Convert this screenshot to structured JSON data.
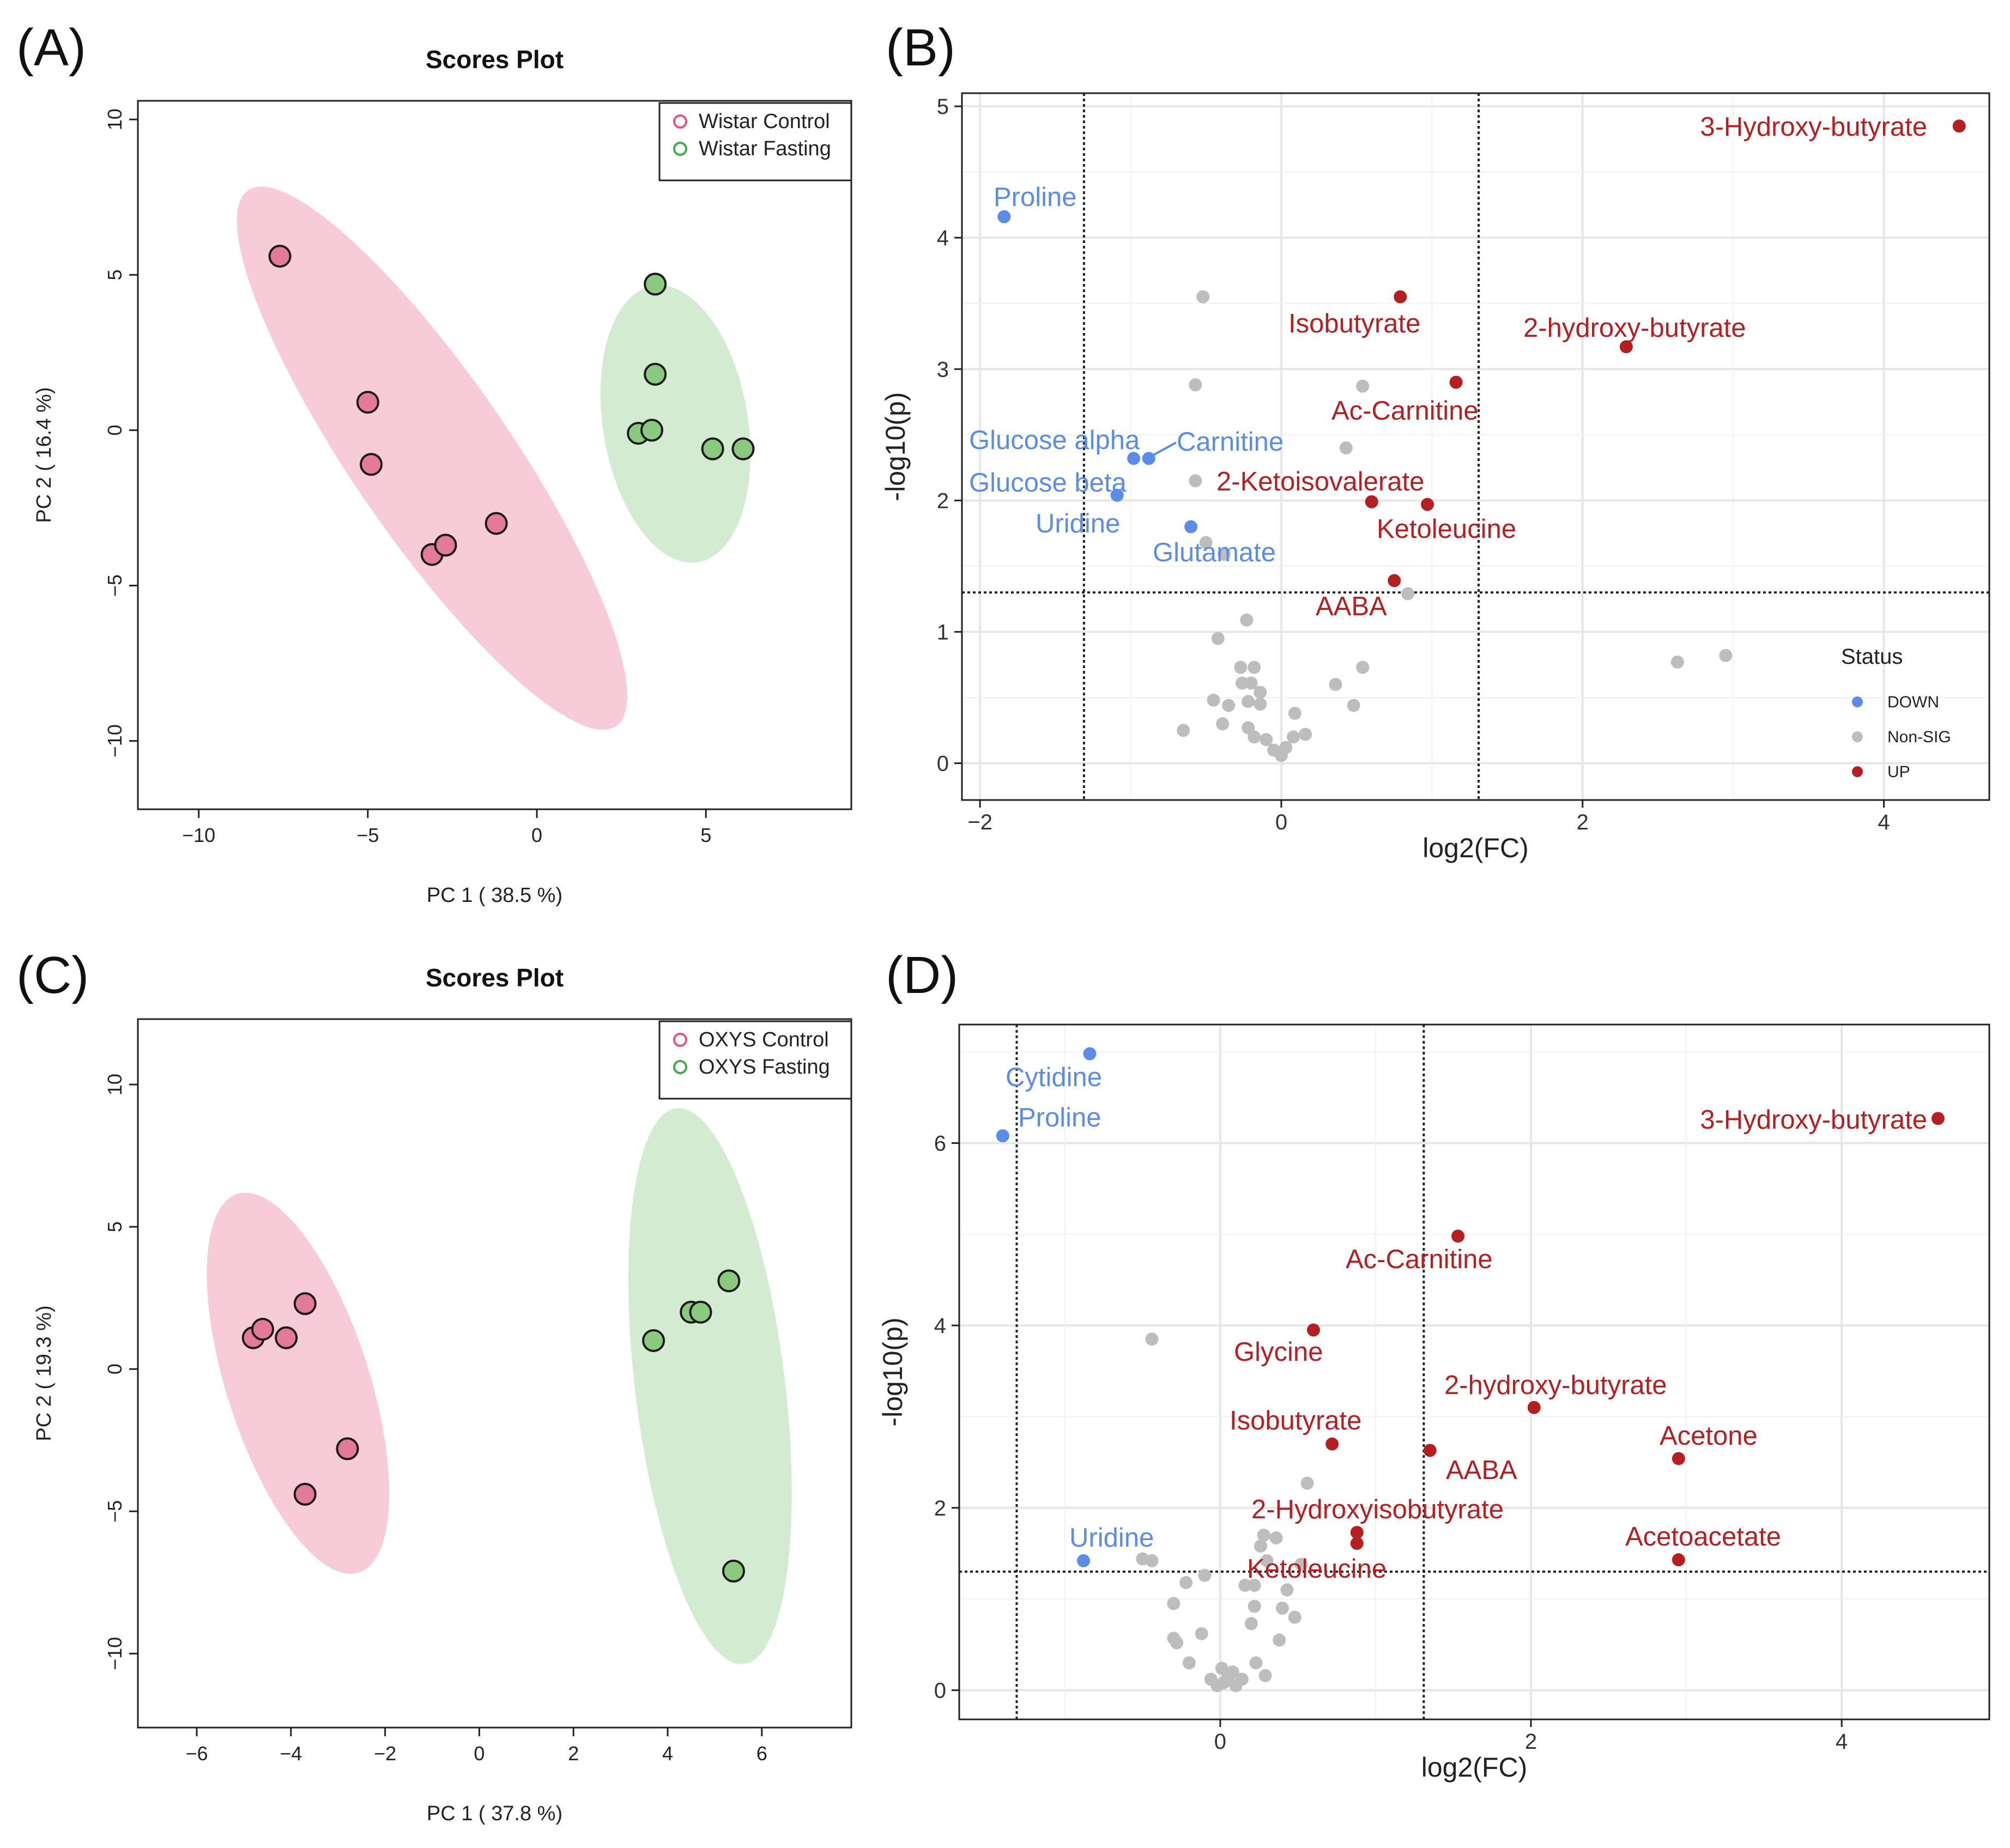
{
  "chart_data": [
    {
      "panel": "(A)",
      "type": "scatter",
      "title": "Scores Plot",
      "xlabel": "PC 1 ( 38.5 %)",
      "ylabel": "PC 2 ( 16.4 %)",
      "xlim": [
        -11.8,
        9.3
      ],
      "ylim": [
        -12.2,
        10.6
      ],
      "xticks": [
        -10,
        -5,
        0,
        5
      ],
      "yticks": [
        10,
        5,
        0,
        -5,
        -10
      ],
      "legend": {
        "position": "top-right"
      },
      "series": [
        {
          "name": "Wistar Control",
          "color": "#e0567e",
          "fill": "#e27a98",
          "ellipse": {
            "cx": -3.1,
            "cy": -0.9,
            "rx": 10.2,
            "ry": 2.4,
            "angle": -58
          },
          "points": [
            [
              -7.6,
              5.6
            ],
            [
              -5.0,
              0.9
            ],
            [
              -4.9,
              -1.1
            ],
            [
              -3.1,
              -4.0
            ],
            [
              -2.7,
              -3.7
            ],
            [
              -1.2,
              -3.0
            ]
          ]
        },
        {
          "name": "Wistar Fasting",
          "color": "#3fae49",
          "fill": "#8bc981",
          "ellipse": {
            "cx": 4.1,
            "cy": 0.2,
            "rx": 4.5,
            "ry": 2.15,
            "angle": -82
          },
          "points": [
            [
              3.5,
              4.7
            ],
            [
              3.5,
              1.8
            ],
            [
              3.0,
              -0.1
            ],
            [
              3.4,
              0.0
            ],
            [
              5.2,
              -0.6
            ],
            [
              6.1,
              -0.6
            ]
          ]
        }
      ]
    },
    {
      "panel": "(B)",
      "type": "scatter",
      "xlabel": "log2(FC)",
      "ylabel": "-log10(p)",
      "xlim": [
        -2.12,
        4.7
      ],
      "ylim": [
        -0.28,
        5.1
      ],
      "xticks": [
        -2,
        0,
        2,
        4
      ],
      "yticks": [
        0,
        1,
        2,
        3,
        4,
        5
      ],
      "vlines": [
        -1.31,
        1.31
      ],
      "hline": 1.3,
      "legend": {
        "title": "Status",
        "position": "bottom-right",
        "entries": [
          {
            "label": "DOWN",
            "color": "#5b8ce8"
          },
          {
            "label": "Non-SIG",
            "color": "#bdbdbd"
          },
          {
            "label": "UP",
            "color": "#b51f22"
          }
        ]
      },
      "points": [
        {
          "x": 4.5,
          "y": 4.85,
          "status": "UP",
          "label": "3-Hydroxy-butyrate"
        },
        {
          "x": 0.79,
          "y": 3.55,
          "status": "UP",
          "label": "Isobutyrate"
        },
        {
          "x": 2.29,
          "y": 3.17,
          "status": "UP",
          "label": "2-hydroxy-butyrate"
        },
        {
          "x": 1.16,
          "y": 2.9,
          "status": "UP",
          "label": "Ac-Carnitine"
        },
        {
          "x": 0.6,
          "y": 1.99,
          "status": "UP",
          "label": "2-Ketoisovalerate"
        },
        {
          "x": 0.97,
          "y": 1.97,
          "status": "UP",
          "label": "Ketoleucine"
        },
        {
          "x": 0.75,
          "y": 1.39,
          "status": "UP",
          "label": "AABA"
        },
        {
          "x": -1.84,
          "y": 4.16,
          "status": "DOWN",
          "label": "Proline"
        },
        {
          "x": -0.98,
          "y": 2.32,
          "status": "DOWN",
          "label": "Glucose alpha"
        },
        {
          "x": -0.88,
          "y": 2.32,
          "status": "DOWN",
          "label": "Carnitine"
        },
        {
          "x": -1.09,
          "y": 2.04,
          "status": "DOWN",
          "label": "Glucose beta"
        },
        {
          "x": -1.09,
          "y": 2.04,
          "status": "DOWN",
          "label": "Uridine"
        },
        {
          "x": -0.6,
          "y": 1.8,
          "status": "DOWN",
          "label": "Glutamate"
        },
        {
          "x": -0.52,
          "y": 3.55,
          "status": "Non-SIG"
        },
        {
          "x": -0.57,
          "y": 2.88,
          "status": "Non-SIG"
        },
        {
          "x": 0.54,
          "y": 2.87,
          "status": "Non-SIG"
        },
        {
          "x": 0.43,
          "y": 2.4,
          "status": "Non-SIG"
        },
        {
          "x": -0.57,
          "y": 2.15,
          "status": "Non-SIG"
        },
        {
          "x": -0.5,
          "y": 1.68,
          "status": "Non-SIG"
        },
        {
          "x": -0.38,
          "y": 1.59,
          "status": "Non-SIG"
        },
        {
          "x": 0.84,
          "y": 1.29,
          "status": "Non-SIG"
        },
        {
          "x": -0.23,
          "y": 1.09,
          "status": "Non-SIG"
        },
        {
          "x": -0.42,
          "y": 0.95,
          "status": "Non-SIG"
        },
        {
          "x": -0.27,
          "y": 0.73,
          "status": "Non-SIG"
        },
        {
          "x": -0.18,
          "y": 0.73,
          "status": "Non-SIG"
        },
        {
          "x": -0.26,
          "y": 0.61,
          "status": "Non-SIG"
        },
        {
          "x": -0.2,
          "y": 0.61,
          "status": "Non-SIG"
        },
        {
          "x": -0.14,
          "y": 0.54,
          "status": "Non-SIG"
        },
        {
          "x": -0.45,
          "y": 0.48,
          "status": "Non-SIG"
        },
        {
          "x": -0.35,
          "y": 0.44,
          "status": "Non-SIG"
        },
        {
          "x": -0.22,
          "y": 0.47,
          "status": "Non-SIG"
        },
        {
          "x": -0.14,
          "y": 0.45,
          "status": "Non-SIG"
        },
        {
          "x": 0.36,
          "y": 0.6,
          "status": "Non-SIG"
        },
        {
          "x": 0.54,
          "y": 0.73,
          "status": "Non-SIG"
        },
        {
          "x": 0.48,
          "y": 0.44,
          "status": "Non-SIG"
        },
        {
          "x": -0.65,
          "y": 0.25,
          "status": "Non-SIG"
        },
        {
          "x": -0.39,
          "y": 0.3,
          "status": "Non-SIG"
        },
        {
          "x": -0.22,
          "y": 0.27,
          "status": "Non-SIG"
        },
        {
          "x": -0.18,
          "y": 0.2,
          "status": "Non-SIG"
        },
        {
          "x": -0.1,
          "y": 0.18,
          "status": "Non-SIG"
        },
        {
          "x": -0.05,
          "y": 0.1,
          "status": "Non-SIG"
        },
        {
          "x": 0.0,
          "y": 0.06,
          "status": "Non-SIG"
        },
        {
          "x": 0.03,
          "y": 0.12,
          "status": "Non-SIG"
        },
        {
          "x": 0.08,
          "y": 0.2,
          "status": "Non-SIG"
        },
        {
          "x": 0.16,
          "y": 0.22,
          "status": "Non-SIG"
        },
        {
          "x": 0.09,
          "y": 0.38,
          "status": "Non-SIG"
        },
        {
          "x": 2.63,
          "y": 0.77,
          "status": "Non-SIG"
        },
        {
          "x": 2.95,
          "y": 0.82,
          "status": "Non-SIG"
        }
      ]
    },
    {
      "panel": "(C)",
      "type": "scatter",
      "title": "Scores Plot",
      "xlabel": "PC 1 ( 37.8 %)",
      "ylabel": "PC 2 ( 19.3 %)",
      "xlim": [
        -7.25,
        7.9
      ],
      "ylim": [
        -12.6,
        12.3
      ],
      "xticks": [
        -6,
        -4,
        -2,
        0,
        2,
        4,
        6
      ],
      "yticks": [
        10,
        5,
        0,
        -5,
        -10
      ],
      "legend": {
        "position": "top-right"
      },
      "series": [
        {
          "name": "OXYS Control",
          "color": "#e0567e",
          "fill": "#e27a98",
          "ellipse": {
            "cx": -3.85,
            "cy": -0.5,
            "rx": 6.8,
            "ry": 1.56,
            "angle": -80
          },
          "points": [
            [
              -4.8,
              1.1
            ],
            [
              -4.6,
              1.4
            ],
            [
              -4.1,
              1.1
            ],
            [
              -3.7,
              2.3
            ],
            [
              -2.8,
              -2.8
            ],
            [
              -3.7,
              -4.4
            ]
          ]
        },
        {
          "name": "OXYS Fasting",
          "color": "#3fae49",
          "fill": "#8bc981",
          "ellipse": {
            "cx": 4.9,
            "cy": -0.6,
            "rx": 9.8,
            "ry": 1.6,
            "angle": -86
          },
          "points": [
            [
              3.7,
              1.0
            ],
            [
              4.5,
              2.0
            ],
            [
              4.7,
              2.0
            ],
            [
              5.3,
              3.1
            ],
            [
              5.4,
              -7.1
            ]
          ]
        }
      ]
    },
    {
      "panel": "(D)",
      "type": "scatter",
      "xlabel": "log2(FC)",
      "ylabel": "-log10(p)",
      "xlim": [
        -1.68,
        4.95
      ],
      "ylim": [
        -0.32,
        7.3
      ],
      "xticks": [
        0,
        2,
        4
      ],
      "yticks": [
        0,
        2,
        4,
        6
      ],
      "vlines": [
        -1.31,
        1.31
      ],
      "hline": 1.3,
      "points": [
        {
          "x": 4.62,
          "y": 6.27,
          "status": "UP",
          "label": "3-Hydroxy-butyrate"
        },
        {
          "x": 1.53,
          "y": 4.98,
          "status": "UP",
          "label": "Ac-Carnitine"
        },
        {
          "x": 0.6,
          "y": 3.95,
          "status": "UP",
          "label": "Glycine"
        },
        {
          "x": 2.02,
          "y": 3.1,
          "status": "UP",
          "label": "2-hydroxy-butyrate"
        },
        {
          "x": 0.72,
          "y": 2.7,
          "status": "UP",
          "label": "Isobutyrate"
        },
        {
          "x": 1.35,
          "y": 2.63,
          "status": "UP",
          "label": "AABA"
        },
        {
          "x": 2.95,
          "y": 2.54,
          "status": "UP",
          "label": "Acetone"
        },
        {
          "x": 0.88,
          "y": 1.73,
          "status": "UP",
          "label": "2-Hydroxyisobutyrate"
        },
        {
          "x": 0.88,
          "y": 1.61,
          "status": "UP",
          "label": "Ketoleucine"
        },
        {
          "x": 2.95,
          "y": 1.43,
          "status": "UP",
          "label": "Acetoacetate"
        },
        {
          "x": -0.84,
          "y": 6.98,
          "status": "DOWN",
          "label": "Cytidine"
        },
        {
          "x": -1.4,
          "y": 6.08,
          "status": "DOWN",
          "label": "Proline"
        },
        {
          "x": -0.88,
          "y": 1.42,
          "status": "DOWN",
          "label": "Uridine"
        },
        {
          "x": -0.44,
          "y": 3.85,
          "status": "Non-SIG"
        },
        {
          "x": 0.56,
          "y": 2.27,
          "status": "Non-SIG"
        },
        {
          "x": 0.28,
          "y": 1.7,
          "status": "Non-SIG"
        },
        {
          "x": 0.36,
          "y": 1.67,
          "status": "Non-SIG"
        },
        {
          "x": 0.26,
          "y": 1.58,
          "status": "Non-SIG"
        },
        {
          "x": -0.5,
          "y": 1.44,
          "status": "Non-SIG"
        },
        {
          "x": -0.44,
          "y": 1.42,
          "status": "Non-SIG"
        },
        {
          "x": 0.3,
          "y": 1.42,
          "status": "Non-SIG"
        },
        {
          "x": 0.52,
          "y": 1.38,
          "status": "Non-SIG"
        },
        {
          "x": -0.1,
          "y": 1.26,
          "status": "Non-SIG"
        },
        {
          "x": -0.22,
          "y": 1.18,
          "status": "Non-SIG"
        },
        {
          "x": 0.16,
          "y": 1.15,
          "status": "Non-SIG"
        },
        {
          "x": 0.22,
          "y": 1.15,
          "status": "Non-SIG"
        },
        {
          "x": 0.43,
          "y": 1.1,
          "status": "Non-SIG"
        },
        {
          "x": -0.3,
          "y": 0.95,
          "status": "Non-SIG"
        },
        {
          "x": 0.22,
          "y": 0.92,
          "status": "Non-SIG"
        },
        {
          "x": 0.4,
          "y": 0.9,
          "status": "Non-SIG"
        },
        {
          "x": 0.2,
          "y": 0.73,
          "status": "Non-SIG"
        },
        {
          "x": 0.48,
          "y": 0.8,
          "status": "Non-SIG"
        },
        {
          "x": -0.3,
          "y": 0.57,
          "status": "Non-SIG"
        },
        {
          "x": -0.28,
          "y": 0.52,
          "status": "Non-SIG"
        },
        {
          "x": -0.12,
          "y": 0.62,
          "status": "Non-SIG"
        },
        {
          "x": 0.38,
          "y": 0.55,
          "status": "Non-SIG"
        },
        {
          "x": -0.2,
          "y": 0.3,
          "status": "Non-SIG"
        },
        {
          "x": 0.23,
          "y": 0.3,
          "status": "Non-SIG"
        },
        {
          "x": 0.29,
          "y": 0.16,
          "status": "Non-SIG"
        },
        {
          "x": -0.06,
          "y": 0.12,
          "status": "Non-SIG"
        },
        {
          "x": -0.02,
          "y": 0.05,
          "status": "Non-SIG"
        },
        {
          "x": 0.02,
          "y": 0.08,
          "status": "Non-SIG"
        },
        {
          "x": 0.05,
          "y": 0.14,
          "status": "Non-SIG"
        },
        {
          "x": 0.08,
          "y": 0.2,
          "status": "Non-SIG"
        },
        {
          "x": 0.1,
          "y": 0.05,
          "status": "Non-SIG"
        },
        {
          "x": 0.14,
          "y": 0.12,
          "status": "Non-SIG"
        },
        {
          "x": 0.01,
          "y": 0.24,
          "status": "Non-SIG"
        }
      ]
    }
  ]
}
